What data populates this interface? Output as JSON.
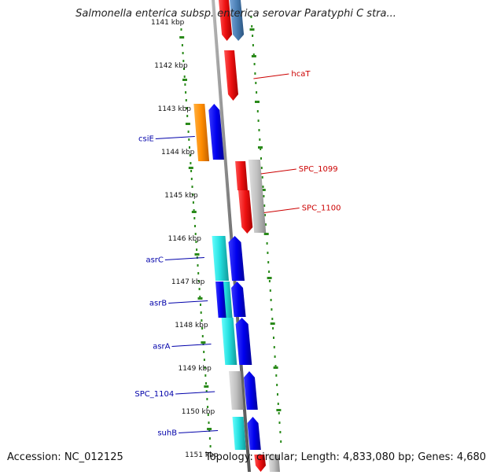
{
  "header": {
    "title": "Salmonella enterica subsp. enterica serovar Paratyphi C stra..."
  },
  "footer": {
    "accession": "Accession: NC_012125",
    "summary": "Topology: circular; Length: 4,833,080 bp; Genes: 4,680"
  },
  "colors": {
    "backbone": "#8a8a8a",
    "tick": "#2a8a1a",
    "forward_label": "#cc0000",
    "reverse_label": "#0000aa",
    "red": "#ee1111",
    "blue": "#0000ee",
    "cyan": "#22dddd",
    "orange": "#ff8c00",
    "gray": "#c0c0c0",
    "steelblue": "#4a7fb5"
  },
  "scale_ticks": [
    "1141 kbp",
    "1142 kbp",
    "1143 kbp",
    "1144 kbp",
    "1145 kbp",
    "1146 kbp",
    "1147 kbp",
    "1148 kbp",
    "1149 kbp",
    "1150 kbp",
    "1151 kbp"
  ],
  "forward_genes": [
    {
      "label": "hcaT",
      "kbp": 1142.2
    },
    {
      "label": "SPC_1099",
      "kbp": 1144.4
    },
    {
      "label": "SPC_1100",
      "kbp": 1145.3
    }
  ],
  "reverse_genes": [
    {
      "label": "csiE",
      "kbp": 1143.7
    },
    {
      "label": "asrC",
      "kbp": 1146.5
    },
    {
      "label": "asrB",
      "kbp": 1147.5
    },
    {
      "label": "asrA",
      "kbp": 1148.5
    },
    {
      "label": "SPC_1104",
      "kbp": 1149.6
    },
    {
      "label": "suhB",
      "kbp": 1150.5
    }
  ]
}
